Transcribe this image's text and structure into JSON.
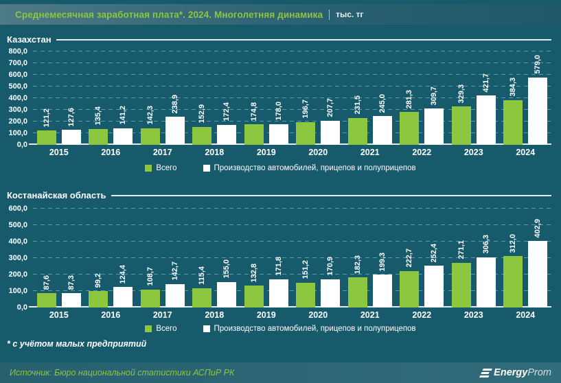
{
  "header": {
    "title": "Среднемесячная заработная плата*. 2024. Многолетняя динамика",
    "units": "тыс. тг"
  },
  "footnote": "* с учётом малых предприятий",
  "footer": {
    "source": "Источник: Бюро национальной статистики АСПиР РК",
    "logo": {
      "bold": "Energy",
      "light": "Prom",
      "icon": "triple-bars-icon"
    }
  },
  "colors": {
    "background": "#175a6c",
    "accent_green": "#8dc63f",
    "bar_white": "#ffffff",
    "gridline": "#5ea7bb",
    "axis_line": "#e3edf0",
    "text": "#ffffff"
  },
  "chart_data": [
    {
      "type": "bar",
      "title": "Казахстан",
      "categories": [
        "2015",
        "2016",
        "2017",
        "2018",
        "2019",
        "2020",
        "2021",
        "2022",
        "2023",
        "2024"
      ],
      "series": [
        {
          "name": "Всего",
          "color": "#8dc63f",
          "values": [
            121.2,
            135.4,
            142.3,
            152.9,
            174.8,
            196.7,
            231.5,
            281.3,
            329.3,
            384.3
          ]
        },
        {
          "name": "Производство автомобилей, прицепов и полуприцепов",
          "color": "#ffffff",
          "values": [
            127.6,
            141.2,
            238.9,
            172.4,
            178.0,
            207.7,
            245.0,
            309.7,
            421.7,
            579.0
          ]
        }
      ],
      "ylim": [
        0,
        800
      ],
      "ytick_step": 100,
      "grid": true,
      "legend_position": "bottom",
      "value_labels": "rotated-90",
      "decimal_separator": ","
    },
    {
      "type": "bar",
      "title": "Костанайская область",
      "categories": [
        "2015",
        "2016",
        "2017",
        "2018",
        "2019",
        "2020",
        "2021",
        "2022",
        "2023",
        "2024"
      ],
      "series": [
        {
          "name": "Всего",
          "color": "#8dc63f",
          "values": [
            87.6,
            99.2,
            108.7,
            115.4,
            132.8,
            151.2,
            182.3,
            222.7,
            271.1,
            312.0
          ]
        },
        {
          "name": "Производство автомобилей, прицепов и полуприцепов",
          "color": "#ffffff",
          "values": [
            87.3,
            124.4,
            142.7,
            155.0,
            171.8,
            170.9,
            199.3,
            252.4,
            306.3,
            402.9
          ]
        }
      ],
      "ylim": [
        0,
        600
      ],
      "ytick_step": 100,
      "grid": true,
      "legend_position": "bottom",
      "value_labels": "rotated-90",
      "decimal_separator": ","
    }
  ]
}
